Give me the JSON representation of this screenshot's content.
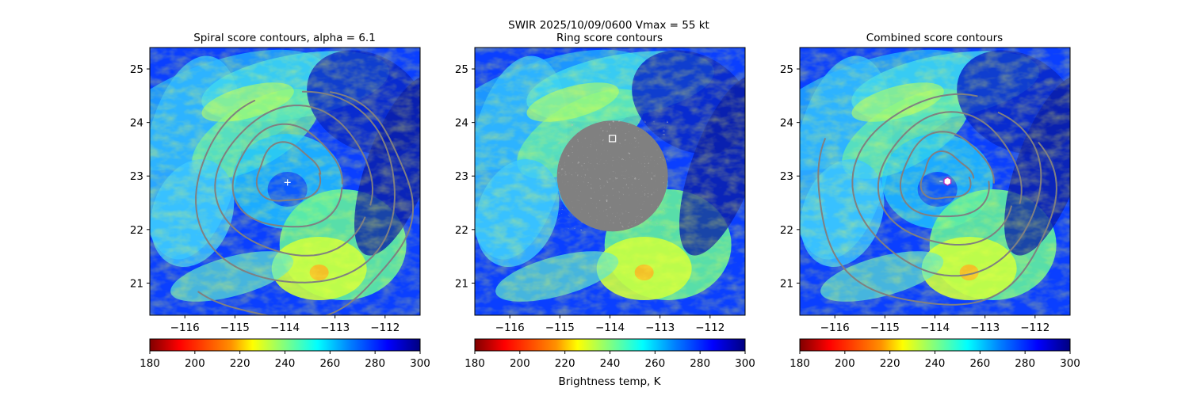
{
  "figure": {
    "suptitle": "SWIR  2025/10/09/0600    Vmax = 55 kt",
    "colorbar_label": "Brightness temp, K"
  },
  "colors": {
    "contour": "#808080",
    "colormap": [
      "#800000",
      "#ff0000",
      "#ff8000",
      "#ffff00",
      "#80ff80",
      "#00ffff",
      "#0080ff",
      "#0000ff",
      "#000080"
    ]
  },
  "chart_data": [
    {
      "type": "heatmap",
      "title": "Spiral score contours, alpha =  6.1",
      "xlim": [
        -116.7,
        -111.3
      ],
      "ylim": [
        20.4,
        25.4
      ],
      "xticks": [
        -116,
        -115,
        -114,
        -113,
        -112
      ],
      "xtick_labels": [
        "−116",
        "−115",
        "−114",
        "−113",
        "−112"
      ],
      "yticks": [
        21,
        22,
        23,
        24,
        25
      ],
      "ytick_labels": [
        "21",
        "22",
        "23",
        "24",
        "25"
      ],
      "center_marker": {
        "lon": -113.95,
        "lat": 22.88,
        "symbol": "+"
      },
      "colorbar": {
        "vmin": 180,
        "vmax": 300,
        "ticks": [
          180,
          200,
          220,
          240,
          260,
          280,
          300
        ],
        "colormap": "jet_r"
      }
    },
    {
      "type": "heatmap",
      "title": "Ring score contours",
      "xlim": [
        -116.7,
        -111.3
      ],
      "ylim": [
        20.4,
        25.4
      ],
      "xticks": [
        -116,
        -115,
        -114,
        -113,
        -112
      ],
      "xtick_labels": [
        "−116",
        "−115",
        "−114",
        "−113",
        "−112"
      ],
      "yticks": [
        21,
        22,
        23,
        24,
        25
      ],
      "ytick_labels": [
        "21",
        "22",
        "23",
        "24",
        "25"
      ],
      "ring_marker": {
        "lon": -113.95,
        "lat": 23.7,
        "symbol": "square"
      },
      "colorbar": {
        "vmin": 180,
        "vmax": 300,
        "ticks": [
          180,
          200,
          220,
          240,
          260,
          280,
          300
        ],
        "colormap": "jet_r"
      }
    },
    {
      "type": "heatmap",
      "title": "Combined score contours",
      "xlim": [
        -116.7,
        -111.3
      ],
      "ylim": [
        20.4,
        25.4
      ],
      "xticks": [
        -116,
        -115,
        -114,
        -113,
        -112
      ],
      "xtick_labels": [
        "−116",
        "−115",
        "−114",
        "−113",
        "−112"
      ],
      "yticks": [
        21,
        22,
        23,
        24,
        25
      ],
      "ytick_labels": [
        "21",
        "22",
        "23",
        "24",
        "25"
      ],
      "center_marker": {
        "lon": -113.75,
        "lat": 22.9,
        "symbol": "hexagon"
      },
      "colorbar": {
        "vmin": 180,
        "vmax": 300,
        "ticks": [
          180,
          200,
          220,
          240,
          260,
          280,
          300
        ],
        "colormap": "jet_r"
      }
    }
  ]
}
